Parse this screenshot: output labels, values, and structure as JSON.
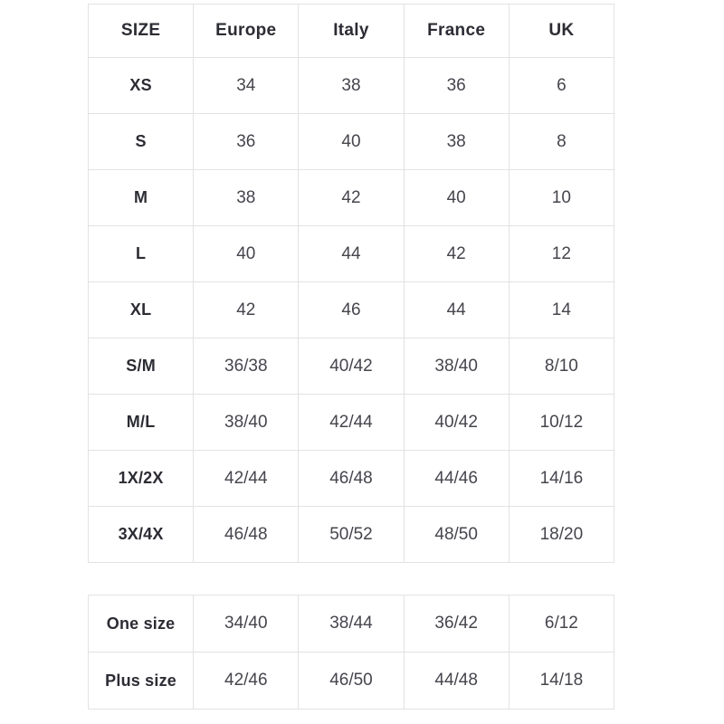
{
  "colors": {
    "border": "#e2e2e2",
    "header_text": "#2c2c34",
    "cell_text": "#45454d",
    "background": "#ffffff"
  },
  "size_table": {
    "headers": [
      "SIZE",
      "Europe",
      "Italy",
      "France",
      "UK"
    ],
    "rows": [
      [
        "XS",
        "34",
        "38",
        "36",
        "6"
      ],
      [
        "S",
        "36",
        "40",
        "38",
        "8"
      ],
      [
        "M",
        "38",
        "42",
        "40",
        "10"
      ],
      [
        "L",
        "40",
        "44",
        "42",
        "12"
      ],
      [
        "XL",
        "42",
        "46",
        "44",
        "14"
      ],
      [
        "S/M",
        "36/38",
        "40/42",
        "38/40",
        "8/10"
      ],
      [
        "M/L",
        "38/40",
        "42/44",
        "40/42",
        "10/12"
      ],
      [
        "1X/2X",
        "42/44",
        "46/48",
        "44/46",
        "14/16"
      ],
      [
        "3X/4X",
        "46/48",
        "50/52",
        "48/50",
        "18/20"
      ]
    ]
  },
  "special_sizes_table": {
    "rows": [
      [
        "One size",
        "34/40",
        "38/44",
        "36/42",
        "6/12"
      ],
      [
        "Plus size",
        "42/46",
        "46/50",
        "44/48",
        "14/18"
      ]
    ]
  },
  "chart_data": {
    "type": "table",
    "title": "",
    "columns": [
      "SIZE",
      "Europe",
      "Italy",
      "France",
      "UK"
    ],
    "rows": [
      [
        "XS",
        "34",
        "38",
        "36",
        "6"
      ],
      [
        "S",
        "36",
        "40",
        "38",
        "8"
      ],
      [
        "M",
        "38",
        "42",
        "40",
        "10"
      ],
      [
        "L",
        "40",
        "44",
        "42",
        "12"
      ],
      [
        "XL",
        "42",
        "46",
        "44",
        "14"
      ],
      [
        "S/M",
        "36/38",
        "40/42",
        "38/40",
        "8/10"
      ],
      [
        "M/L",
        "38/40",
        "42/44",
        "40/42",
        "10/12"
      ],
      [
        "1X/2X",
        "42/44",
        "46/48",
        "44/46",
        "14/16"
      ],
      [
        "3X/4X",
        "46/48",
        "50/52",
        "48/50",
        "18/20"
      ],
      [
        "One size",
        "34/40",
        "38/44",
        "36/42",
        "6/12"
      ],
      [
        "Plus size",
        "42/46",
        "46/50",
        "44/48",
        "14/18"
      ]
    ],
    "layout": {
      "grid": true,
      "header_row_bold": true,
      "first_column_bold": true,
      "two_separate_tables": true,
      "second_table_rows": [
        "One size",
        "Plus size"
      ]
    }
  }
}
